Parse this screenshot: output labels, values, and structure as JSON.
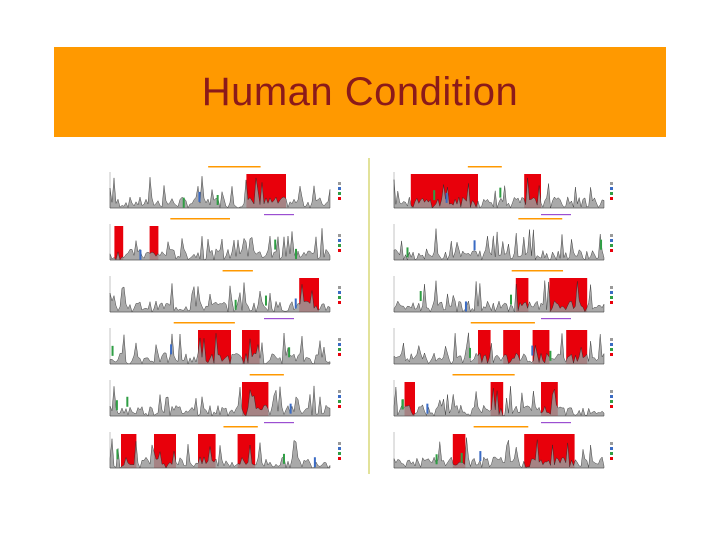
{
  "slide": {
    "title": "Human Condition",
    "title_bar_color": "#ff9900",
    "title_color": "#8b1a1a"
  },
  "figure": {
    "panel_count_per_column": 6,
    "column_count": 2,
    "colors": {
      "red": "#e8000b",
      "gray": "#9a9a9a",
      "dark": "#222222",
      "blue": "#3a6bc4",
      "green": "#2f9e44",
      "orange_annotation": "#ff9900",
      "purple_annotation": "#9b4fd1",
      "divider": "#e2e29a"
    }
  }
}
